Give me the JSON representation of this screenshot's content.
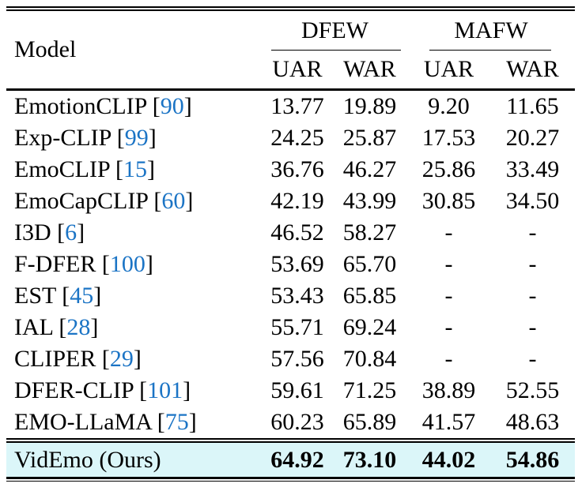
{
  "table": {
    "model_header": "Model",
    "groups": [
      {
        "label": "DFEW"
      },
      {
        "label": "MAFW"
      }
    ],
    "subheaders": [
      "UAR",
      "WAR",
      "UAR",
      "WAR"
    ],
    "bracket_open": " [",
    "bracket_close": "]",
    "rows": [
      {
        "model": "EmotionCLIP",
        "cite": "90",
        "values": [
          "13.77",
          "19.89",
          "9.20",
          "11.65"
        ]
      },
      {
        "model": "Exp-CLIP",
        "cite": "99",
        "values": [
          "24.25",
          "25.87",
          "17.53",
          "20.27"
        ]
      },
      {
        "model": "EmoCLIP",
        "cite": "15",
        "values": [
          "36.76",
          "46.27",
          "25.86",
          "33.49"
        ]
      },
      {
        "model": "EmoCapCLIP",
        "cite": "60",
        "values": [
          "42.19",
          "43.99",
          "30.85",
          "34.50"
        ]
      },
      {
        "model": "I3D",
        "cite": "6",
        "values": [
          "46.52",
          "58.27",
          "-",
          "-"
        ]
      },
      {
        "model": "F-DFER",
        "cite": "100",
        "values": [
          "53.69",
          "65.70",
          "-",
          "-"
        ]
      },
      {
        "model": "EST",
        "cite": "45",
        "values": [
          "53.43",
          "65.85",
          "-",
          "-"
        ]
      },
      {
        "model": "IAL",
        "cite": "28",
        "values": [
          "55.71",
          "69.24",
          "-",
          "-"
        ]
      },
      {
        "model": "CLIPER",
        "cite": "29",
        "values": [
          "57.56",
          "70.84",
          "-",
          "-"
        ]
      },
      {
        "model": "DFER-CLIP",
        "cite": "101",
        "values": [
          "59.61",
          "71.25",
          "38.89",
          "52.55"
        ]
      },
      {
        "model": "EMO-LLaMA",
        "cite": "75",
        "values": [
          "60.23",
          "65.89",
          "41.57",
          "48.63"
        ]
      }
    ],
    "highlight": {
      "model": "VidEmo (Ours)",
      "values": [
        "64.92",
        "73.10",
        "44.02",
        "54.86"
      ]
    }
  },
  "chart_data": {
    "type": "table",
    "title": "",
    "columns": [
      "Model",
      "DFEW UAR",
      "DFEW WAR",
      "MAFW UAR",
      "MAFW WAR"
    ],
    "series": [
      {
        "name": "EmotionCLIP [90]",
        "values": [
          13.77,
          19.89,
          9.2,
          11.65
        ]
      },
      {
        "name": "Exp-CLIP [99]",
        "values": [
          24.25,
          25.87,
          17.53,
          20.27
        ]
      },
      {
        "name": "EmoCLIP [15]",
        "values": [
          36.76,
          46.27,
          25.86,
          33.49
        ]
      },
      {
        "name": "EmoCapCLIP [60]",
        "values": [
          42.19,
          43.99,
          30.85,
          34.5
        ]
      },
      {
        "name": "I3D [6]",
        "values": [
          46.52,
          58.27,
          null,
          null
        ]
      },
      {
        "name": "F-DFER [100]",
        "values": [
          53.69,
          65.7,
          null,
          null
        ]
      },
      {
        "name": "EST [45]",
        "values": [
          53.43,
          65.85,
          null,
          null
        ]
      },
      {
        "name": "IAL [28]",
        "values": [
          55.71,
          69.24,
          null,
          null
        ]
      },
      {
        "name": "CLIPER [29]",
        "values": [
          57.56,
          70.84,
          null,
          null
        ]
      },
      {
        "name": "DFER-CLIP [101]",
        "values": [
          59.61,
          71.25,
          38.89,
          52.55
        ]
      },
      {
        "name": "EMO-LLaMA [75]",
        "values": [
          60.23,
          65.89,
          41.57,
          48.63
        ]
      },
      {
        "name": "VidEmo (Ours)",
        "values": [
          64.92,
          73.1,
          44.02,
          54.86
        ]
      }
    ]
  },
  "colors": {
    "citation_blue": "#1b74c5",
    "highlight_bg": "#dbf6f9",
    "rule_black": "#000000",
    "text_black": "#000000"
  }
}
